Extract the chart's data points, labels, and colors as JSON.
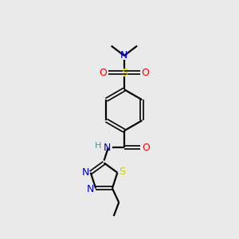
{
  "background_color": "#eaeaea",
  "atom_colors": {
    "C": "#000000",
    "N": "#0000cc",
    "O": "#ff0000",
    "S": "#cccc00",
    "H": "#4a9a9a"
  },
  "bond_color": "#000000",
  "figsize": [
    3.0,
    3.0
  ],
  "dpi": 100
}
